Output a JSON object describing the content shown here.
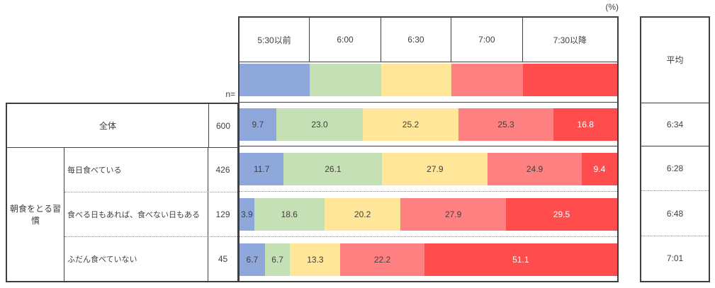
{
  "unit_label": "(%)",
  "n_label": "n=",
  "average_header": "平均",
  "group_label": "朝食をとる習慣",
  "columns": [
    "5:30以前",
    "6:00",
    "6:30",
    "7:00",
    "7:30以降"
  ],
  "colors": {
    "seg0_blue": "#8FA8DC",
    "seg1_green": "#C5E0B4",
    "seg2_yellow": "#FFE699",
    "seg3_salmon": "#FF8080",
    "seg4_red": "#FF4D4D",
    "border": "#3f3f3f",
    "text": "#404040"
  },
  "rows": [
    {
      "label": "全体",
      "n": "600",
      "values": [
        9.7,
        23.0,
        25.2,
        25.3,
        16.8
      ],
      "values_display": [
        "9.7",
        "23.0",
        "25.2",
        "25.3",
        "16.8"
      ],
      "average": "6:34"
    },
    {
      "label": "毎日食べている",
      "n": "426",
      "values": [
        11.7,
        26.1,
        27.9,
        24.9,
        9.4
      ],
      "values_display": [
        "11.7",
        "26.1",
        "27.9",
        "24.9",
        "9.4"
      ],
      "average": "6:28"
    },
    {
      "label": "食べる日もあれば、食べない日もある",
      "n": "129",
      "values": [
        3.9,
        18.6,
        20.2,
        27.9,
        29.5
      ],
      "values_display": [
        "3.9",
        "18.6",
        "20.2",
        "27.9",
        "29.5"
      ],
      "average": "6:48"
    },
    {
      "label": "ふだん食べていない",
      "n": "45",
      "values": [
        6.7,
        6.7,
        13.3,
        22.2,
        51.1
      ],
      "values_display": [
        "6.7",
        "6.7",
        "13.3",
        "22.2",
        "51.1"
      ],
      "average": "7:01"
    }
  ],
  "chart_data": {
    "type": "bar",
    "subtype": "horizontal-stacked-100percent",
    "unit": "%",
    "title": "",
    "categories": [
      "5:30以前",
      "6:00",
      "6:30",
      "7:00",
      "7:30以降"
    ],
    "group_label": "朝食をとる習慣",
    "average_column_label": "平均",
    "series": [
      {
        "name": "全体",
        "n": 600,
        "values": [
          9.7,
          23.0,
          25.2,
          25.3,
          16.8
        ],
        "average": "6:34"
      },
      {
        "name": "毎日食べている",
        "n": 426,
        "values": [
          11.7,
          26.1,
          27.9,
          24.9,
          9.4
        ],
        "average": "6:28"
      },
      {
        "name": "食べる日もあれば、食べない日もある",
        "n": 129,
        "values": [
          3.9,
          18.6,
          20.2,
          27.9,
          29.5
        ],
        "average": "6:48"
      },
      {
        "name": "ふだん食べていない",
        "n": 45,
        "values": [
          6.7,
          6.7,
          13.3,
          22.2,
          51.1
        ],
        "average": "7:01"
      }
    ],
    "xlim": [
      0,
      100
    ],
    "legend_position": "top-band",
    "grid": false
  }
}
